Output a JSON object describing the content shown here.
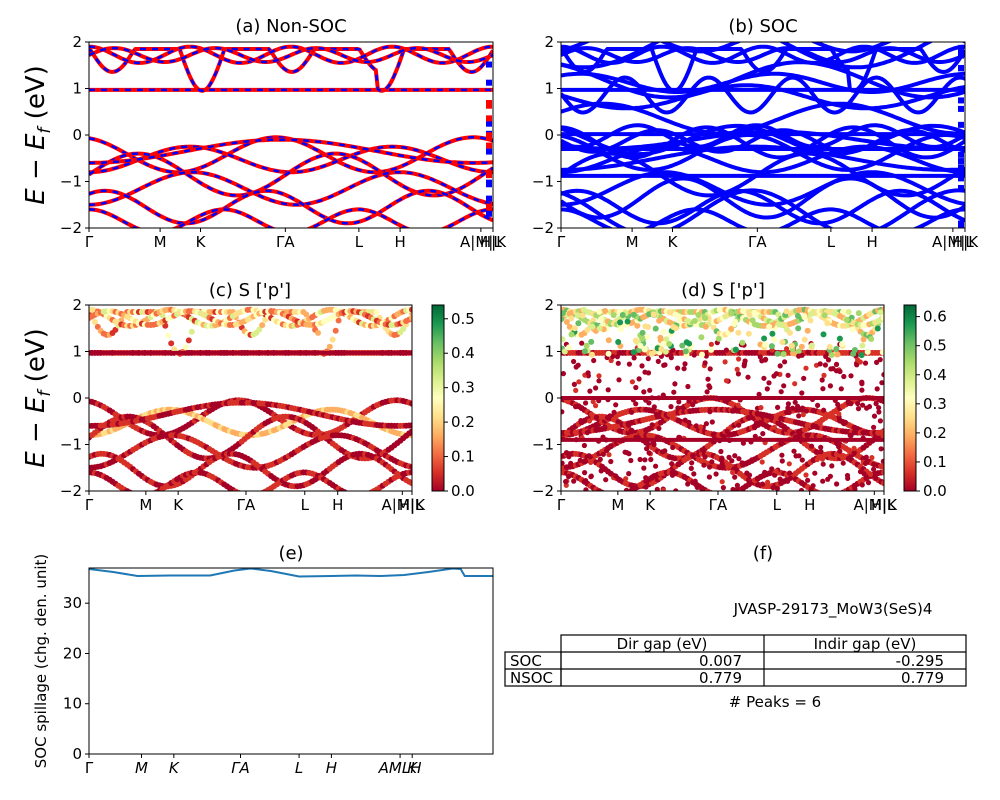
{
  "chart_data": [
    {
      "id": "a",
      "type": "line",
      "title": "(a) Non-SOC",
      "ylabel_main": "E − E",
      "ylabel_sub": "f",
      "ylabel_unit": " (eV)",
      "ylim": [
        -2,
        2
      ],
      "yticks": [
        "2",
        "1",
        "0",
        "−1",
        "−2"
      ],
      "xticks": [
        "Γ",
        "M",
        "K",
        "Γ",
        "A",
        "L",
        "H",
        "A",
        "M",
        "L",
        "H",
        "K"
      ],
      "xtick_labels_display": [
        "Γ",
        "M",
        "K",
        "ΓA",
        "L",
        "H",
        "A|M|L",
        "H|K"
      ],
      "series": [
        {
          "color": "#ff0000",
          "style": "solid"
        },
        {
          "color": "#0000ff",
          "style": "dashed"
        }
      ]
    },
    {
      "id": "b",
      "type": "line",
      "title": "(b) SOC",
      "ylim": [
        -2,
        2
      ],
      "yticks": [
        "2",
        "1",
        "0",
        "−1",
        "−2"
      ],
      "xtick_labels_display": [
        "Γ",
        "M",
        "K",
        "ΓA",
        "L",
        "H",
        "A|M|L",
        "H|K"
      ],
      "series": [
        {
          "color": "#0000ff",
          "style": "solid"
        }
      ]
    },
    {
      "id": "c",
      "type": "scatter",
      "title": "(c)  S ['p']",
      "ylim": [
        -2,
        2
      ],
      "yticks": [
        "2",
        "1",
        "0",
        "−1",
        "−2"
      ],
      "xtick_labels_display": [
        "Γ",
        "M",
        "K",
        "ΓA",
        "L",
        "H",
        "A|M|L",
        "H|K"
      ],
      "colorbar": {
        "ticks": [
          "0.5",
          "0.4",
          "0.3",
          "0.2",
          "0.1",
          "0.0"
        ],
        "range": [
          0,
          0.54
        ],
        "cmap": "RdYlGn"
      }
    },
    {
      "id": "d",
      "type": "scatter",
      "title": "(d) S ['p']",
      "ylim": [
        -2,
        2
      ],
      "yticks": [
        "2",
        "1",
        "0",
        "−1",
        "−2"
      ],
      "xtick_labels_display": [
        "Γ",
        "M",
        "K",
        "ΓA",
        "L",
        "H",
        "A|M|L",
        "H|K"
      ],
      "colorbar": {
        "ticks": [
          "0.6",
          "0.5",
          "0.4",
          "0.3",
          "0.2",
          "0.1",
          "0.0"
        ],
        "range": [
          0,
          0.64
        ],
        "cmap": "RdYlGn"
      }
    },
    {
      "id": "e",
      "type": "line",
      "title": "(e)",
      "ylabel": "SOC spillage (chg. den. unit)",
      "ylim": [
        0,
        37
      ],
      "yticks": [
        "30",
        "20",
        "10",
        "0"
      ],
      "xtick_labels_display": [
        "Γ",
        "M",
        "K",
        "ΓA",
        "L",
        "H",
        "AMLH",
        "K"
      ],
      "x": [
        0,
        0.06,
        0.12,
        0.2,
        0.3,
        0.36,
        0.4,
        0.45,
        0.52,
        0.6,
        0.66,
        0.72,
        0.78,
        0.84,
        0.9,
        0.92,
        0.93,
        0.96,
        1.0
      ],
      "values": [
        36.8,
        36.2,
        35.4,
        35.5,
        35.5,
        36.5,
        36.9,
        36.4,
        35.3,
        35.4,
        35.5,
        35.4,
        35.6,
        36.2,
        36.9,
        36.8,
        35.4,
        35.4,
        35.4
      ],
      "series_color": "#1f77b4"
    },
    {
      "id": "f",
      "type": "table",
      "title": "(f)",
      "caption": "JVASP-29173_MoW3(SeS)4",
      "columns": [
        "Dir gap (eV)",
        "Indir gap (eV)"
      ],
      "rows": [
        {
          "label": "SOC",
          "values": [
            "0.007",
            "-0.295"
          ]
        },
        {
          "label": "NSOC",
          "values": [
            "0.779",
            "0.779"
          ]
        }
      ],
      "footer": "# Peaks = 6"
    }
  ]
}
